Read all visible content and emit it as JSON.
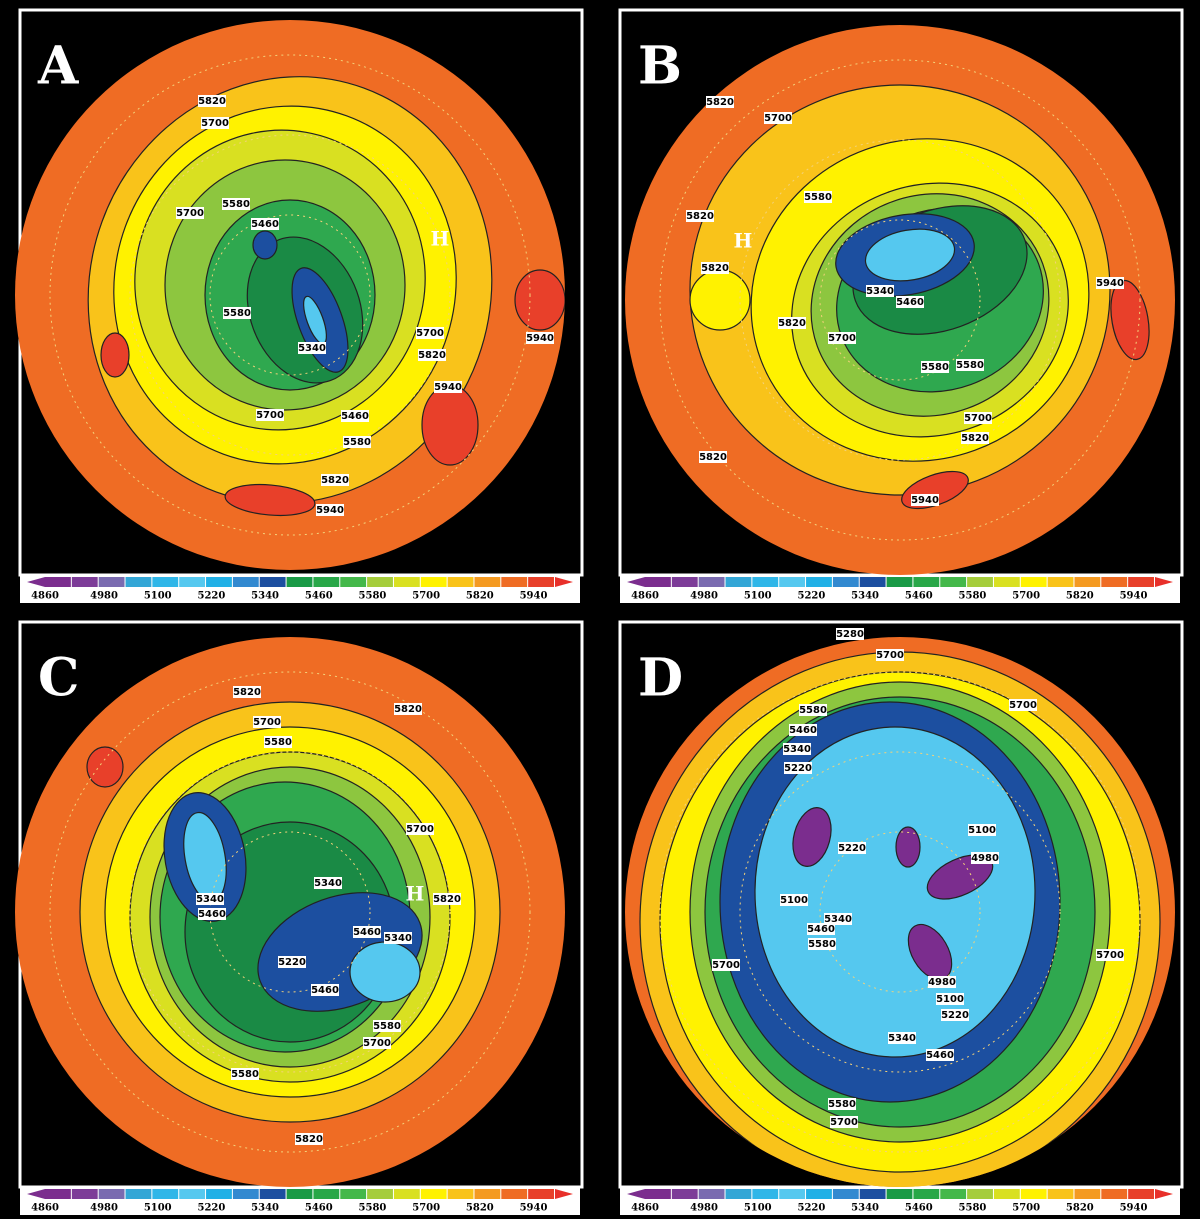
{
  "panels": [
    {
      "letter": "A",
      "high_label": "H",
      "contour_labels": [
        5820,
        5700,
        5580,
        5700,
        5460,
        5580,
        5340,
        5700,
        5820,
        5940,
        5940,
        5700,
        5460,
        5580,
        5820,
        5940
      ]
    },
    {
      "letter": "B",
      "high_label": "H",
      "contour_labels": [
        5820,
        5700,
        5580,
        5820,
        5820,
        5340,
        5460,
        5940,
        5820,
        5700,
        5580,
        5580,
        5700,
        5820,
        5820,
        5940
      ]
    },
    {
      "letter": "C",
      "high_label": "H",
      "contour_labels": [
        5820,
        5820,
        5700,
        5580,
        5700,
        5340,
        5820,
        5340,
        5460,
        5460,
        5340,
        5220,
        5460,
        5580,
        5700,
        5580,
        5820
      ]
    },
    {
      "letter": "D",
      "contour_labels": [
        5280,
        5700,
        5700,
        5580,
        5460,
        5340,
        5220,
        5220,
        5100,
        4980,
        5100,
        5340,
        5460,
        5580,
        5700,
        5700,
        4980,
        5100,
        5220,
        5340,
        5460,
        5580,
        5700
      ]
    }
  ],
  "colorbar": {
    "labels": [
      4860,
      4980,
      5100,
      5220,
      5340,
      5460,
      5580,
      5700,
      5820,
      5940
    ]
  }
}
